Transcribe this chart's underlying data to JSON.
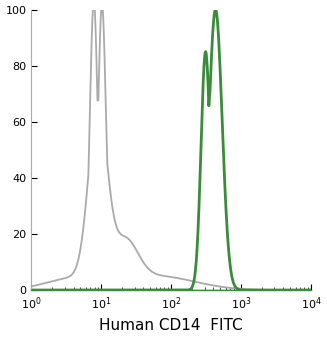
{
  "title": "",
  "xlabel": "Human CD14  FITC",
  "ylabel": "",
  "xlim_log": [
    1,
    10000
  ],
  "ylim": [
    0,
    100
  ],
  "yticks": [
    0,
    20,
    40,
    60,
    80,
    100
  ],
  "xtick_positions": [
    1,
    10,
    100,
    1000,
    10000
  ],
  "gray_color": "#aaaaaa",
  "green_color": "#3a8c3a",
  "gray_linewidth": 1.3,
  "green_linewidth": 2.0,
  "background_color": "#ffffff",
  "baseline_color": "#3a8c3a",
  "baseline_linewidth": 1.0
}
